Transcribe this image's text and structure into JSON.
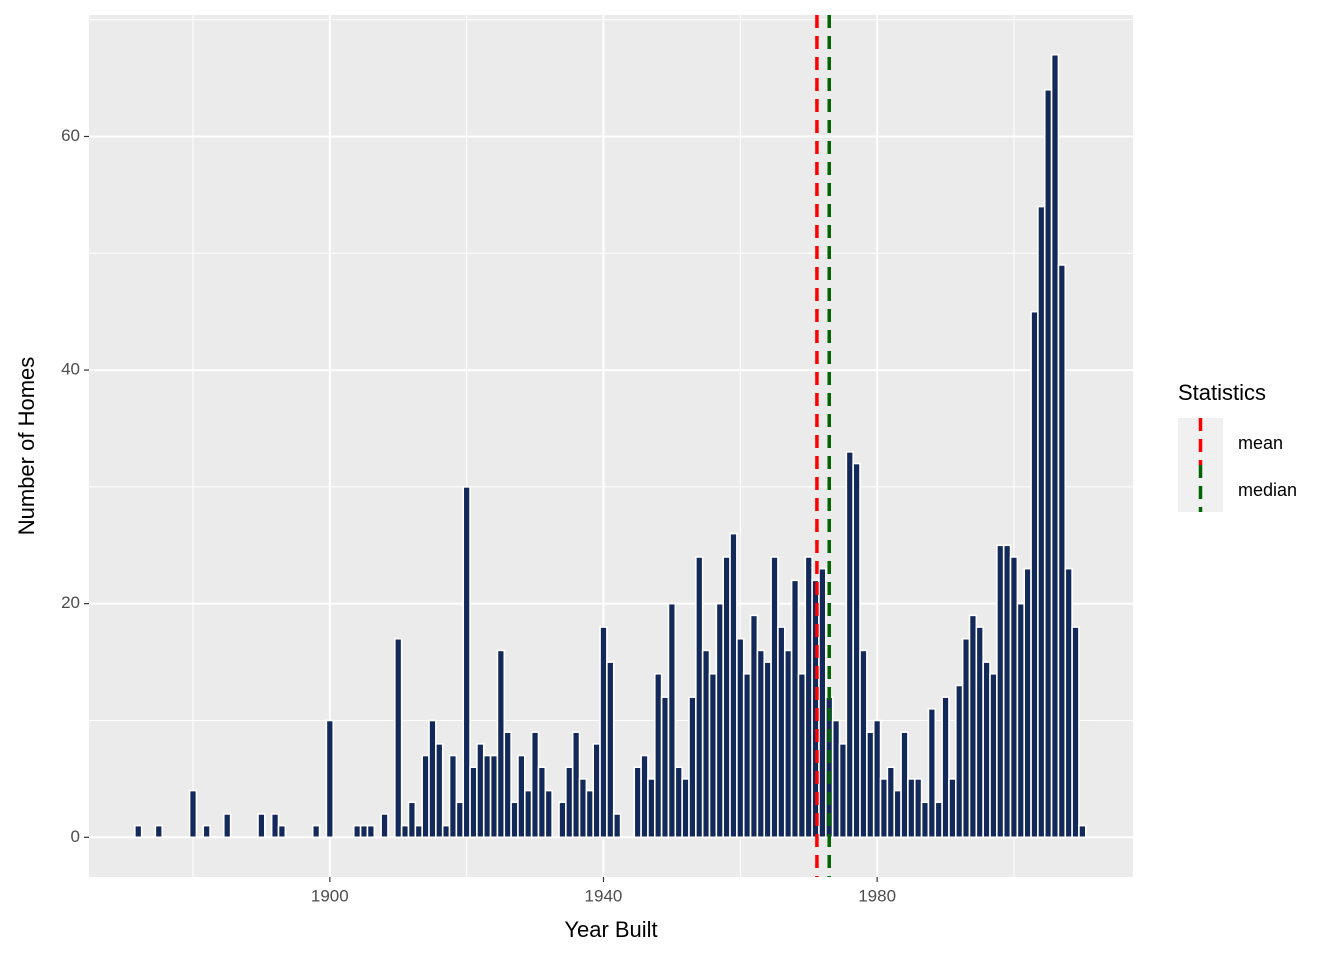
{
  "chart_data": {
    "type": "histogram",
    "x_label": "Year Built",
    "y_label": "Number of Homes",
    "color": "#12295a",
    "bins": [
      1871.5,
      1872.5,
      1873.5,
      1874.5,
      1875.5,
      1876.5,
      1877.5,
      1878.5,
      1879.5,
      1880.5,
      1881.5,
      1882.5,
      1883.5,
      1884.5,
      1885.5,
      1886.5,
      1887.5,
      1888.5,
      1889.5,
      1890.5,
      1891.5,
      1892.5,
      1893.5,
      1894.5,
      1895.5,
      1896.5,
      1897.5,
      1898.5,
      1899.5,
      1900.5,
      1901.5,
      1902.5,
      1903.5,
      1904.5,
      1905.5,
      1906.5,
      1907.5,
      1908.5,
      1909.5,
      1910.5,
      1911.5,
      1912.5,
      1913.5,
      1914.5,
      1915.5,
      1916.5,
      1917.5,
      1918.5,
      1919.5,
      1920.5,
      1921.5,
      1922.5,
      1923.5,
      1924.5,
      1925.5,
      1926.5,
      1927.5,
      1928.5,
      1929.5,
      1930.5,
      1931.5,
      1932.5,
      1933.5,
      1934.5,
      1935.5,
      1936.5,
      1937.5,
      1938.5,
      1939.5,
      1940.5,
      1941.5,
      1942.5,
      1943.5,
      1944.5,
      1945.5,
      1946.5,
      1947.5,
      1948.5,
      1949.5,
      1950.5,
      1951.5,
      1952.5,
      1953.5,
      1954.5,
      1955.5,
      1956.5,
      1957.5,
      1958.5,
      1959.5,
      1960.5,
      1961.5,
      1962.5,
      1963.5,
      1964.5,
      1965.5,
      1966.5,
      1967.5,
      1968.5,
      1969.5,
      1970.5,
      1971.5,
      1972.5,
      1973.5,
      1974.5,
      1975.5,
      1976.5,
      1977.5,
      1978.5,
      1979.5,
      1980.5,
      1981.5,
      1982.5,
      1983.5,
      1984.5,
      1985.5,
      1986.5,
      1987.5,
      1988.5,
      1989.5,
      1990.5,
      1991.5,
      1992.5,
      1993.5,
      1994.5,
      1995.5,
      1996.5,
      1997.5,
      1998.5,
      1999.5,
      2000.5,
      2001.5,
      2002.5,
      2003.5,
      2004.5,
      2005.5,
      2006.5,
      2007.5,
      2008.5,
      2009.5,
      2010.5
    ],
    "values": [
      1,
      0,
      0,
      1,
      0,
      0,
      0,
      0,
      4,
      0,
      1,
      0,
      0,
      2,
      0,
      0,
      0,
      0,
      2,
      0,
      2,
      1,
      0,
      0,
      0,
      0,
      1,
      0,
      10,
      0,
      0,
      0,
      1,
      1,
      1,
      0,
      2,
      0,
      17,
      1,
      3,
      1,
      7,
      10,
      8,
      1,
      7,
      3,
      30,
      6,
      8,
      7,
      7,
      16,
      9,
      3,
      7,
      4,
      9,
      6,
      4,
      0,
      3,
      6,
      9,
      5,
      4,
      8,
      18,
      15,
      2,
      0,
      0,
      6,
      7,
      5,
      14,
      12,
      20,
      6,
      5,
      12,
      24,
      16,
      14,
      20,
      24,
      26,
      17,
      14,
      19,
      16,
      15,
      24,
      18,
      16,
      22,
      14,
      24,
      22,
      23,
      12,
      10,
      8,
      33,
      32,
      16,
      9,
      10,
      5,
      6,
      4,
      9,
      5,
      5,
      3,
      11,
      3,
      12,
      5,
      13,
      17,
      19,
      18,
      15,
      14,
      25,
      25,
      24,
      20,
      23,
      45,
      54,
      64,
      67,
      49,
      23,
      18,
      1
    ],
    "reference_lines": [
      {
        "name": "mean",
        "value": 1971.2,
        "color": "#ff0000"
      },
      {
        "name": "median",
        "value": 1973,
        "color": "#006400"
      }
    ],
    "legend_title": "Statistics",
    "xlim": [
      1864.8,
      2017.4
    ],
    "ylim": [
      -3.4,
      70.4
    ],
    "xticks": [
      1900,
      1940,
      1980
    ],
    "yticks": [
      0,
      20,
      40,
      60
    ],
    "grid": true
  }
}
